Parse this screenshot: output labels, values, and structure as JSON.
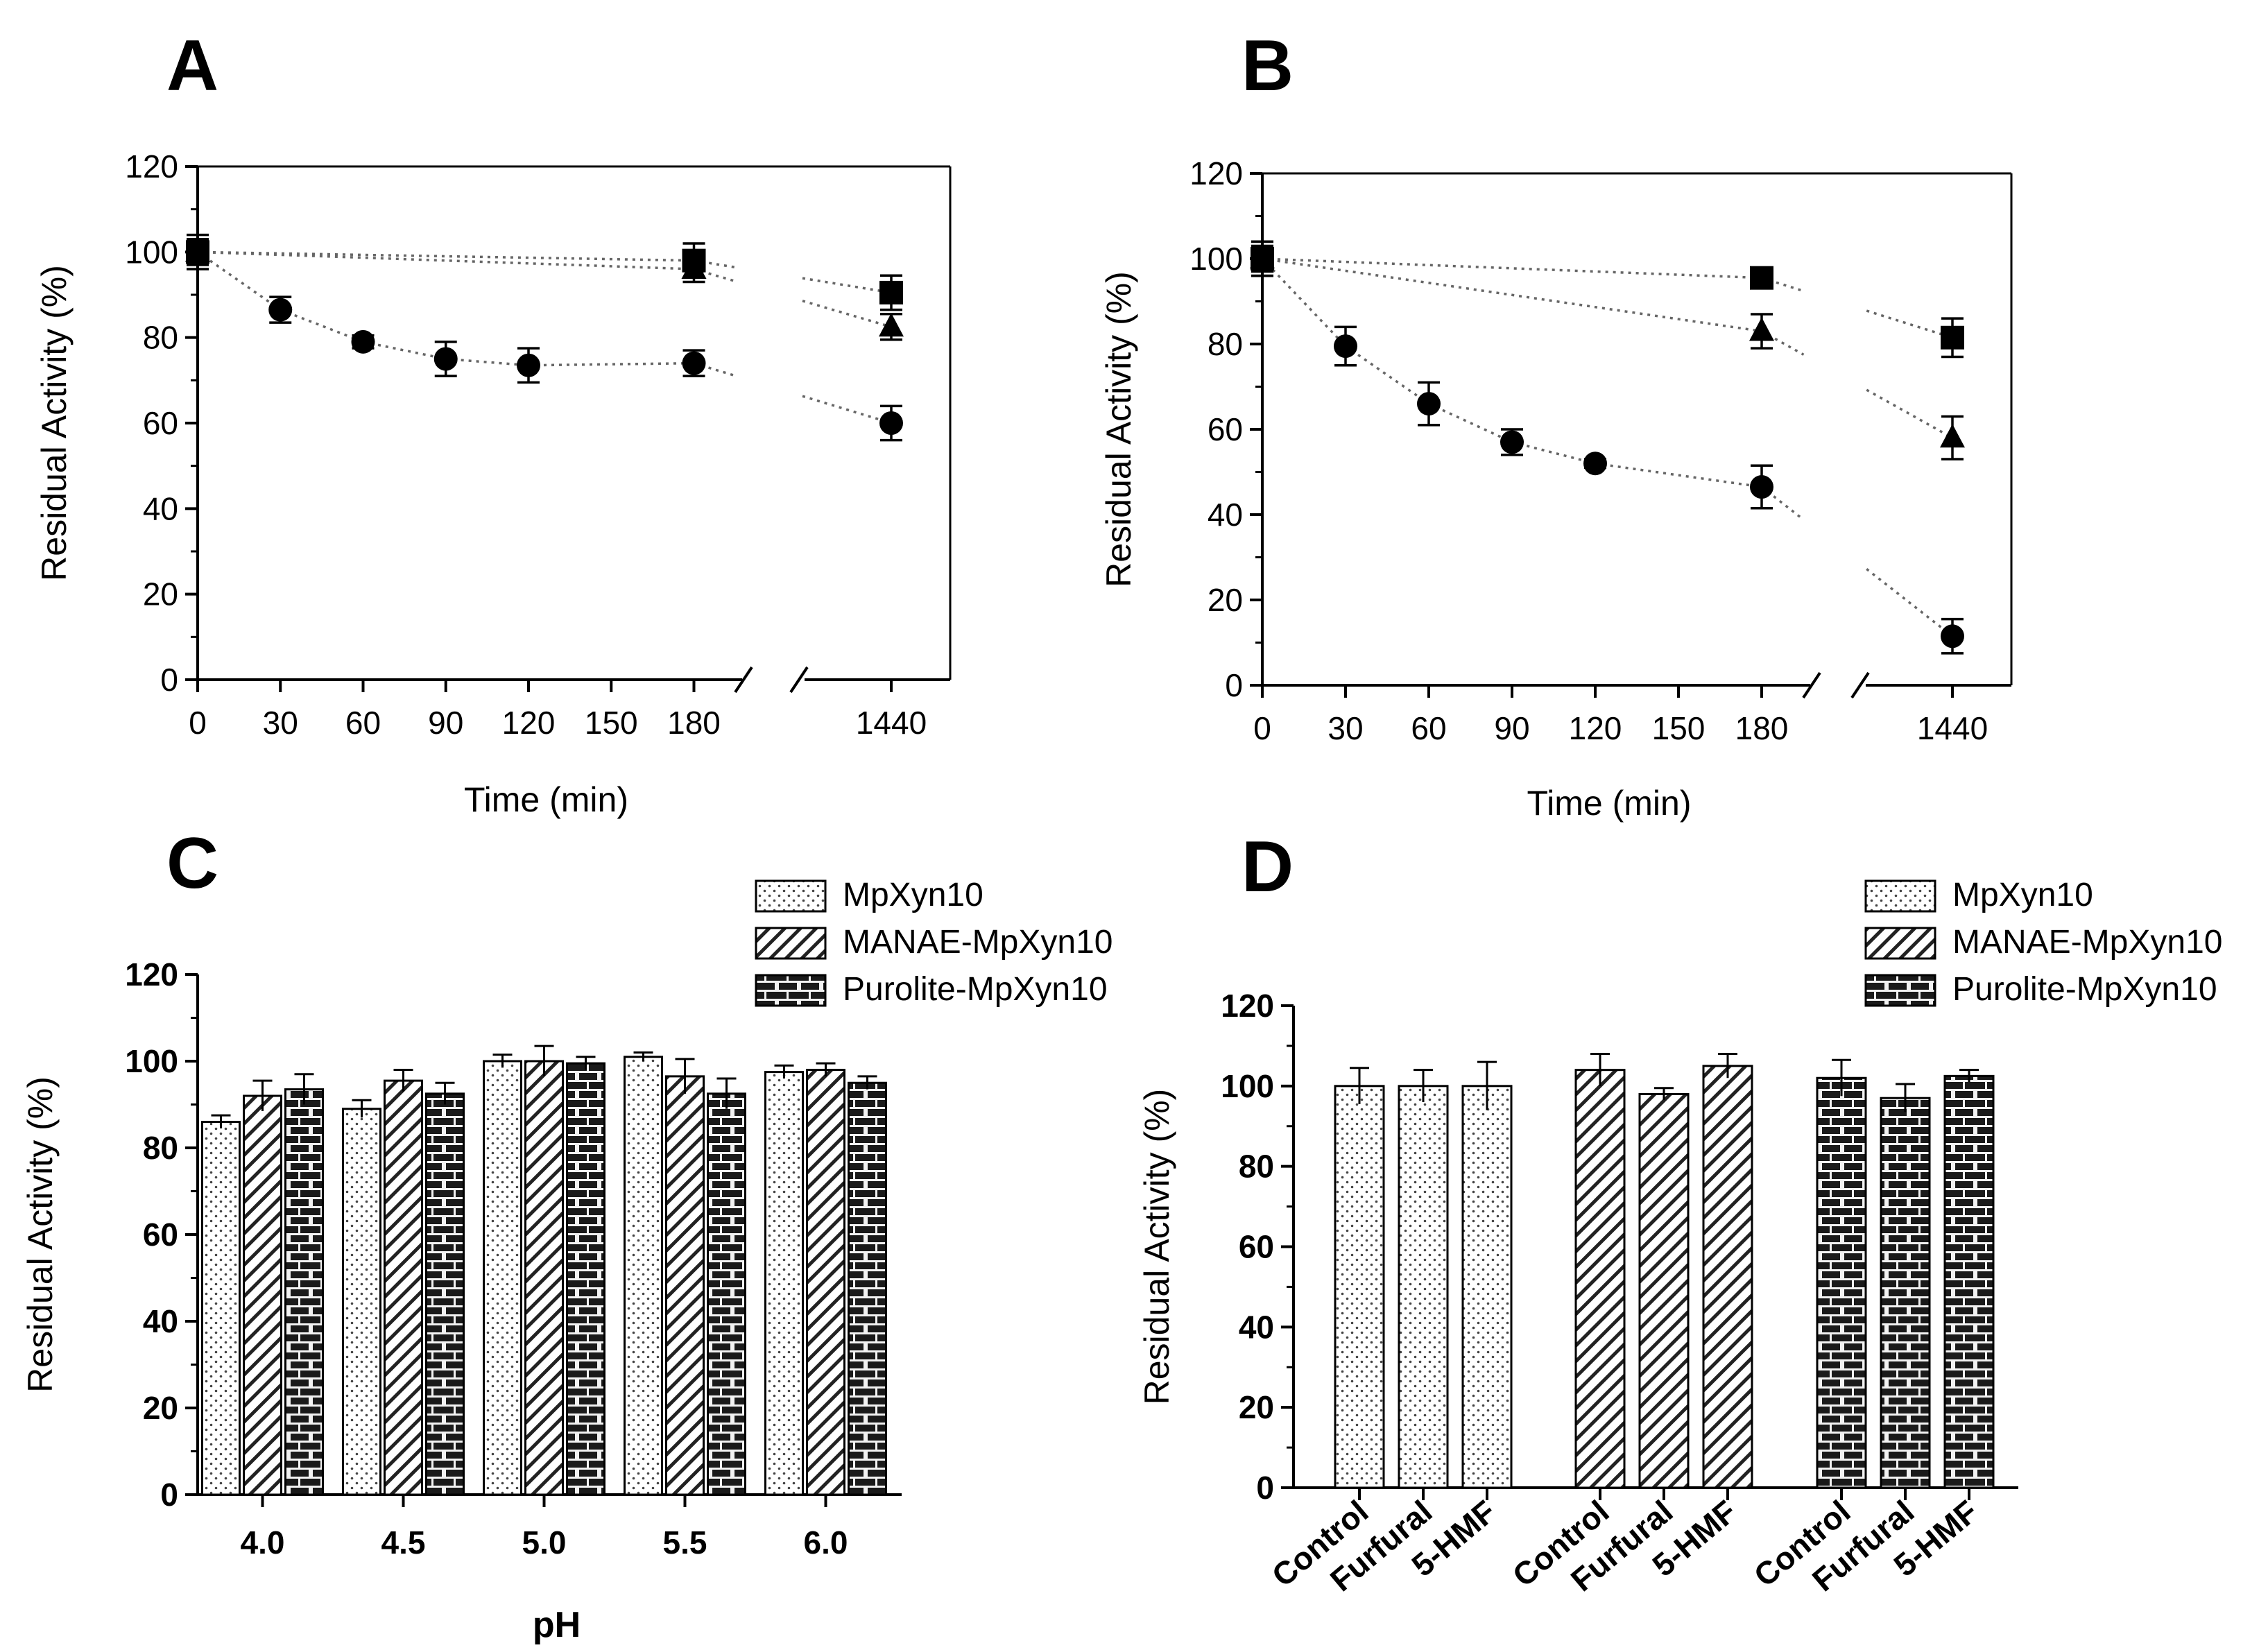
{
  "chart_data": [
    {
      "panel": "A",
      "type": "scatter",
      "xlabel": "Time (min)",
      "ylabel": "Residual Activity (%)",
      "ylim": [
        0,
        120
      ],
      "yticks": [
        0,
        20,
        40,
        60,
        80,
        100,
        120
      ],
      "xticks": [
        0,
        30,
        60,
        90,
        120,
        150,
        180,
        1440
      ],
      "axis_break": "between 180 and 1440",
      "series": [
        {
          "name": "circle",
          "marker": "circle",
          "x": [
            0,
            30,
            60,
            90,
            120,
            180,
            1440
          ],
          "y": [
            100,
            86.5,
            79,
            75,
            73.5,
            74,
            60
          ],
          "err": [
            3,
            3,
            1.5,
            4,
            4,
            3,
            4
          ]
        },
        {
          "name": "triangle",
          "marker": "triangle",
          "x": [
            0,
            180,
            1440
          ],
          "y": [
            100,
            96,
            82.5
          ],
          "err": [
            3,
            3,
            3
          ]
        },
        {
          "name": "square",
          "marker": "square",
          "x": [
            0,
            180,
            1440
          ],
          "y": [
            100,
            98,
            90.5
          ],
          "err": [
            4,
            4,
            4
          ]
        }
      ]
    },
    {
      "panel": "B",
      "type": "scatter",
      "xlabel": "Time (min)",
      "ylabel": "Residual Activity (%)",
      "ylim": [
        0,
        120
      ],
      "yticks": [
        0,
        20,
        40,
        60,
        80,
        100,
        120
      ],
      "xticks": [
        0,
        30,
        60,
        90,
        120,
        150,
        180,
        1440
      ],
      "axis_break": "between 180 and 1440",
      "series": [
        {
          "name": "circle",
          "marker": "circle",
          "x": [
            0,
            30,
            60,
            90,
            120,
            180,
            1440
          ],
          "y": [
            100,
            79.5,
            66,
            57,
            52,
            46.5,
            11.5
          ],
          "err": [
            4,
            4.5,
            5,
            3,
            1,
            5,
            4
          ]
        },
        {
          "name": "triangle",
          "marker": "triangle",
          "x": [
            0,
            180,
            1440
          ],
          "y": [
            100,
            83,
            58
          ],
          "err": [
            3,
            4,
            5
          ]
        },
        {
          "name": "square",
          "marker": "square",
          "x": [
            0,
            180,
            1440
          ],
          "y": [
            100,
            95.5,
            81.5
          ],
          "err": [
            4,
            1.5,
            4.5
          ]
        }
      ]
    },
    {
      "panel": "C",
      "type": "bar",
      "xlabel": "pH",
      "ylabel": "Residual Activity (%)",
      "ylim": [
        0,
        120
      ],
      "yticks": [
        0,
        20,
        40,
        60,
        80,
        100,
        120
      ],
      "categories": [
        "4.0",
        "4.5",
        "5.0",
        "5.5",
        "6.0"
      ],
      "legend_position": "top-right",
      "series": [
        {
          "name": "MpXyn10",
          "pattern": "dots",
          "values": [
            86,
            89,
            100,
            101,
            97.5
          ],
          "err": [
            1.5,
            2,
            1.5,
            1,
            1.5
          ]
        },
        {
          "name": "MANAE-MpXyn10",
          "pattern": "hatch",
          "values": [
            92,
            95.5,
            100,
            96.5,
            98
          ],
          "err": [
            3.5,
            2.5,
            3.5,
            4,
            1.5
          ]
        },
        {
          "name": "Purolite-MpXyn10",
          "pattern": "brick",
          "values": [
            93.5,
            92.5,
            99.5,
            92.5,
            95
          ],
          "err": [
            3.5,
            2.5,
            1.5,
            3.5,
            1.5
          ]
        }
      ]
    },
    {
      "panel": "D",
      "type": "bar",
      "xlabel": "",
      "ylabel": "Residual Activity (%)",
      "ylim": [
        0,
        120
      ],
      "yticks": [
        0,
        20,
        40,
        60,
        80,
        100,
        120
      ],
      "legend_position": "top-right",
      "groups": [
        {
          "name": "MpXyn10",
          "pattern": "dots",
          "categories": [
            "Control",
            "Furfural",
            "5-HMF"
          ],
          "values": [
            100,
            100,
            100
          ],
          "err": [
            4.5,
            4,
            6
          ]
        },
        {
          "name": "MANAE-MpXyn10",
          "pattern": "hatch",
          "categories": [
            "Control",
            "Furfural",
            "5-HMF"
          ],
          "values": [
            104,
            98,
            105
          ],
          "err": [
            4,
            1.5,
            3
          ]
        },
        {
          "name": "Purolite-MpXyn10",
          "pattern": "brick",
          "categories": [
            "Control",
            "Furfural",
            "5-HMF"
          ],
          "values": [
            102,
            97,
            102.5
          ],
          "err": [
            4.5,
            3.5,
            1.5
          ]
        }
      ]
    }
  ]
}
